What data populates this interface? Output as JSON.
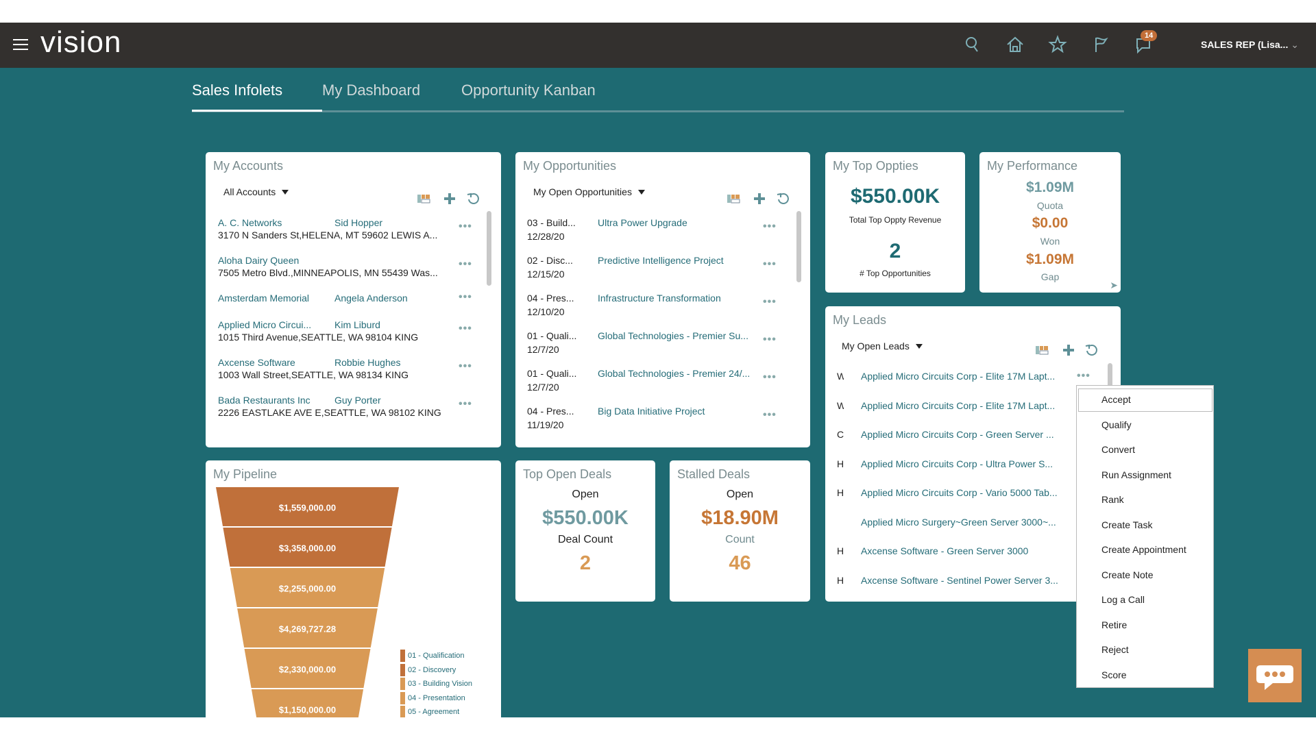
{
  "header": {
    "app_name": "vision",
    "notification_count": "14",
    "user": "SALES REP (Lisa...",
    "icons": [
      "search-icon",
      "home-icon",
      "star-icon",
      "flag-icon",
      "notifications-icon"
    ]
  },
  "tabs": [
    {
      "label": "Sales Infolets",
      "active": true
    },
    {
      "label": "My Dashboard"
    },
    {
      "label": "Opportunity Kanban"
    }
  ],
  "accounts": {
    "title": "My Accounts",
    "filter": "All Accounts",
    "rows": [
      {
        "name": "A. C. Networks",
        "contact": "Sid Hopper",
        "address": "3170 N Sanders St,HELENA, MT 59602 LEWIS A..."
      },
      {
        "name": "Aloha Dairy Queen",
        "contact": "",
        "address": "7505 Metro Blvd.,MINNEAPOLIS, MN 55439 Was..."
      },
      {
        "name": "Amsterdam Memorial",
        "contact": "Angela Anderson",
        "address": ""
      },
      {
        "name": "Applied Micro Circui...",
        "contact": "Kim Liburd",
        "address": "1015 Third Avenue,SEATTLE, WA 98104 KING"
      },
      {
        "name": "Axcense Software",
        "contact": "Robbie Hughes",
        "address": "1003 Wall Street,SEATTLE, WA 98134 KING"
      },
      {
        "name": "Bada Restaurants Inc",
        "contact": "Guy Porter",
        "address": "2226 EASTLAKE AVE E,SEATTLE, WA 98102 KING"
      }
    ]
  },
  "opportunities": {
    "title": "My Opportunities",
    "filter": "My Open Opportunities",
    "rows": [
      {
        "stage": "03 - Build...",
        "date": "12/28/20",
        "name": "Ultra Power Upgrade"
      },
      {
        "stage": "02 - Disc...",
        "date": "12/15/20",
        "name": "Predictive Intelligence Project"
      },
      {
        "stage": "04 - Pres...",
        "date": "12/10/20",
        "name": "Infrastructure Transformation"
      },
      {
        "stage": "01 - Quali...",
        "date": "12/7/20",
        "name": "Global Technologies - Premier Su..."
      },
      {
        "stage": "01 - Quali...",
        "date": "12/7/20",
        "name": "Global Technologies - Premier 24/..."
      },
      {
        "stage": "04 - Pres...",
        "date": "11/19/20",
        "name": "Big Data Initiative Project"
      }
    ]
  },
  "top_oppties": {
    "title": "My Top Oppties",
    "revenue": "$550.00K",
    "revenue_label": "Total Top Oppty Revenue",
    "count": "2",
    "count_label": "# Top Opportunities"
  },
  "performance": {
    "title": "My Performance",
    "quota": "$1.09M",
    "quota_label": "Quota",
    "won": "$0.00",
    "won_label": "Won",
    "gap": "$1.09M",
    "gap_label": "Gap"
  },
  "leads": {
    "title": "My Open Leads",
    "card_title": "My Leads",
    "rows": [
      {
        "rank": "W",
        "name": "Applied Micro Circuits Corp - Elite 17M Lapt..."
      },
      {
        "rank": "W",
        "name": "Applied Micro Circuits Corp - Elite 17M Lapt..."
      },
      {
        "rank": "C",
        "name": "Applied Micro Circuits Corp - Green Server ..."
      },
      {
        "rank": "H",
        "name": "Applied Micro Circuits Corp - Ultra Power S..."
      },
      {
        "rank": "H",
        "name": "Applied Micro Circuits Corp - Vario 5000 Tab..."
      },
      {
        "rank": "",
        "name": "Applied Micro Surgery~Green Server 3000~..."
      },
      {
        "rank": "H",
        "name": "Axcense Software - Green Server 3000"
      },
      {
        "rank": "H",
        "name": "Axcense Software - Sentinel Power Server 3..."
      }
    ]
  },
  "lead_menu": [
    "Accept",
    "Qualify",
    "Convert",
    "Run Assignment",
    "Rank",
    "Create Task",
    "Create Appointment",
    "Create Note",
    "Log a Call",
    "Retire",
    "Reject",
    "Score"
  ],
  "pipeline": {
    "title": "My Pipeline",
    "chart_data": {
      "type": "funnel",
      "values": [
        "$1,559,000.00",
        "$3,358,000.00",
        "$2,255,000.00",
        "$4,269,727.28",
        "$2,330,000.00",
        "$1,150,000.00"
      ],
      "segment_colors": [
        "#c0703a",
        "#c0703a",
        "#d99a55",
        "#d99a55",
        "#d99a55",
        "#d99a55"
      ],
      "legend": [
        {
          "label": "01 - Qualification",
          "color": "#c0703a"
        },
        {
          "label": "02 - Discovery",
          "color": "#c0703a"
        },
        {
          "label": "03 - Building Vision",
          "color": "#d99a55"
        },
        {
          "label": "04 - Presentation",
          "color": "#d99a55"
        },
        {
          "label": "05 - Agreement",
          "color": "#d99a55"
        }
      ]
    }
  },
  "top_open_deals": {
    "title": "Top Open Deals",
    "status": "Open",
    "amount": "$550.00K",
    "count_label": "Deal Count",
    "count": "2"
  },
  "stalled_deals": {
    "title": "Stalled Deals",
    "status": "Open",
    "amount": "$18.90M",
    "count_label": "Count",
    "count": "46"
  },
  "colors": {
    "header": "#33302e",
    "background": "#1e6a72",
    "accent": "#c0703a",
    "link": "#256c78"
  }
}
